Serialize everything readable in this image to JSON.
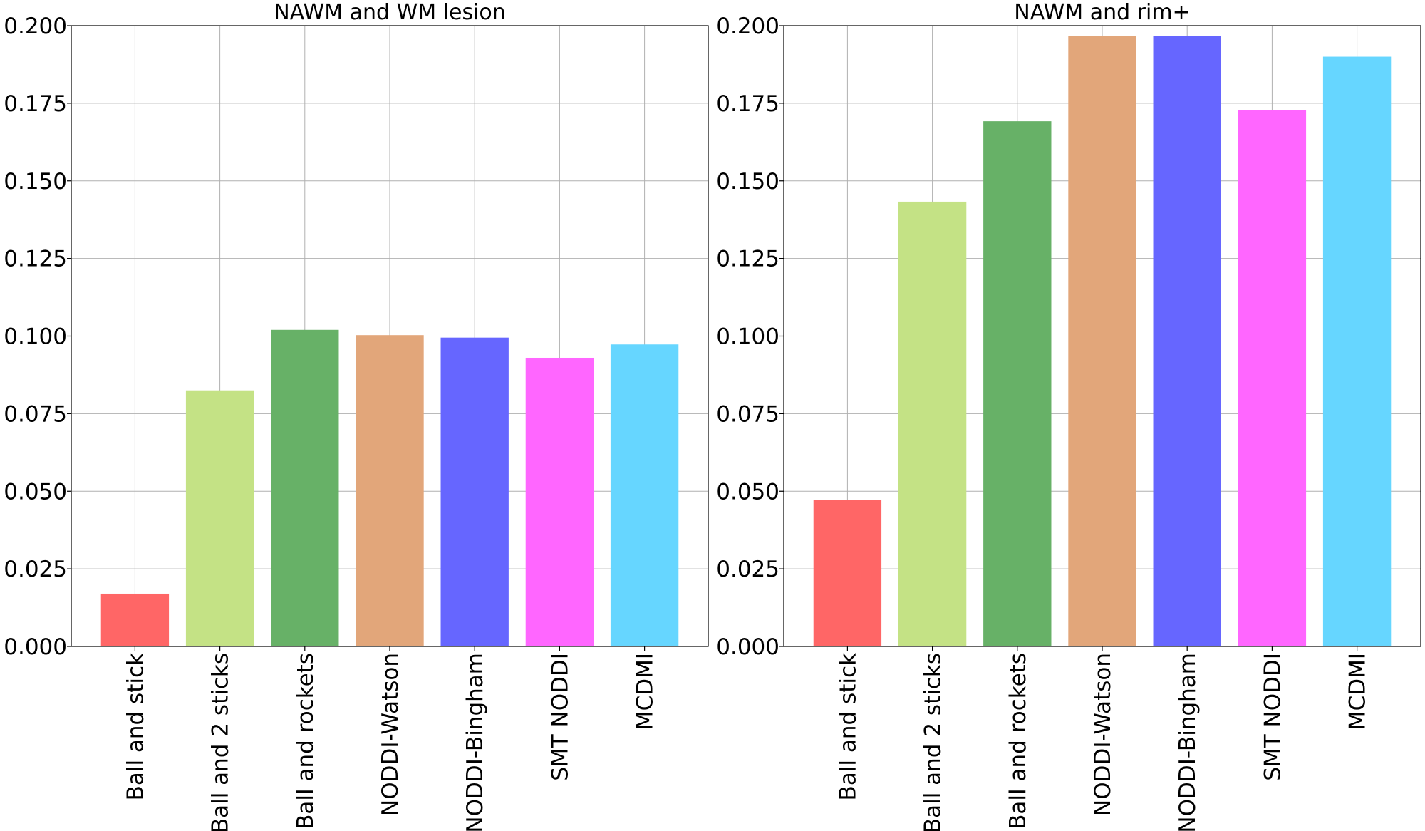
{
  "chart_data": [
    {
      "type": "bar",
      "title": "NAWM and WM lesion",
      "categories": [
        "Ball and stick",
        "Ball and 2 sticks",
        "Ball and rockets",
        "NODDI-Watson",
        "NODDI-Bingham",
        "SMT NODDI",
        "MCDMI"
      ],
      "values": [
        0.017,
        0.0825,
        0.102,
        0.1003,
        0.0995,
        0.093,
        0.0973
      ],
      "ylim": [
        0,
        0.2
      ],
      "yticks": [
        "0.000",
        "0.025",
        "0.050",
        "0.075",
        "0.100",
        "0.125",
        "0.150",
        "0.175",
        "0.200"
      ],
      "xlabel": "",
      "ylabel": "",
      "grid": true
    },
    {
      "type": "bar",
      "title": "NAWM and rim+",
      "categories": [
        "Ball and stick",
        "Ball and 2 sticks",
        "Ball and rockets",
        "NODDI-Watson",
        "NODDI-Bingham",
        "SMT NODDI",
        "MCDMI"
      ],
      "values": [
        0.0472,
        0.1433,
        0.1692,
        0.1966,
        0.1967,
        0.1727,
        0.19
      ],
      "ylim": [
        0,
        0.2
      ],
      "yticks": [
        "0.000",
        "0.025",
        "0.050",
        "0.075",
        "0.100",
        "0.125",
        "0.150",
        "0.175",
        "0.200"
      ],
      "xlabel": "",
      "ylabel": "",
      "grid": true
    }
  ],
  "colors": [
    "#ff6666",
    "#c4e285",
    "#67b167",
    "#e2a67a",
    "#6666ff",
    "#ff66ff",
    "#66d6ff"
  ]
}
